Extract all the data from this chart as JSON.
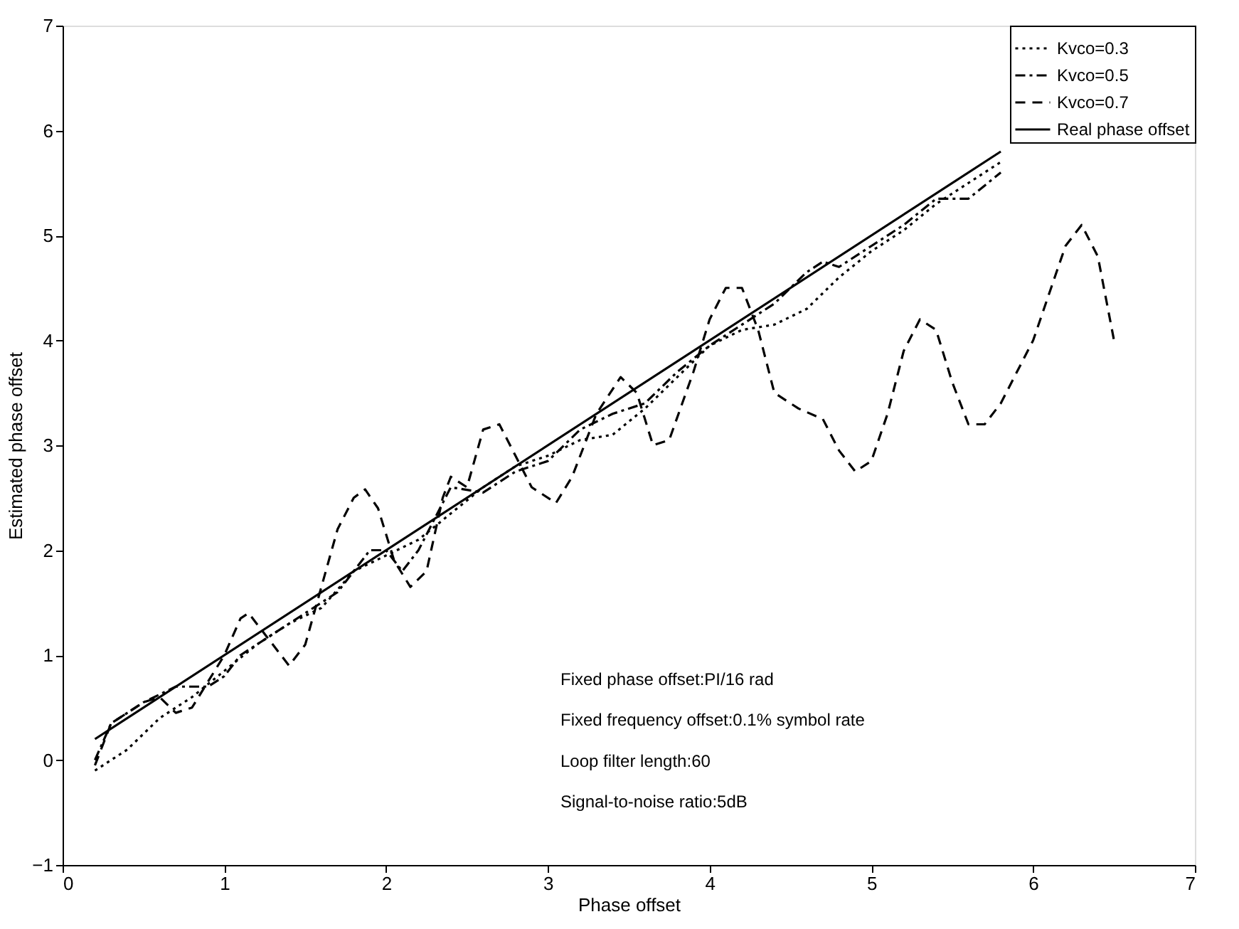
{
  "chart_data": {
    "type": "line",
    "xlabel": "Phase offset",
    "ylabel": "Estimated phase offset",
    "xlim": [
      0,
      7
    ],
    "xticks": [
      0,
      1,
      2,
      3,
      4,
      5,
      6,
      7
    ],
    "ylim": [
      -1,
      7
    ],
    "yticks": [
      -1,
      0,
      1,
      2,
      3,
      4,
      5,
      6,
      7
    ],
    "grid": false,
    "legend": "top right",
    "marker": "none",
    "series": [
      {
        "name": "Kvco=0.3",
        "color": "#000000",
        "line_style": "dotted",
        "x": [
          0.2,
          0.4,
          0.6,
          0.8,
          1.0,
          1.2,
          1.4,
          1.6,
          1.8,
          2.0,
          2.2,
          2.4,
          2.6,
          2.8,
          3.0,
          3.2,
          3.4,
          3.6,
          3.8,
          4.0,
          4.2,
          4.4,
          4.6,
          4.8,
          5.0,
          5.2,
          5.4,
          5.6,
          5.8
        ],
        "values": [
          -0.1,
          0.1,
          0.4,
          0.6,
          0.85,
          1.1,
          1.3,
          1.45,
          1.8,
          1.95,
          2.1,
          2.35,
          2.6,
          2.8,
          2.9,
          3.05,
          3.1,
          3.35,
          3.65,
          3.95,
          4.1,
          4.15,
          4.3,
          4.6,
          4.85,
          5.05,
          5.3,
          5.5,
          5.7
        ]
      },
      {
        "name": "Kvco=0.5",
        "color": "#000000",
        "line_style": "dashdot",
        "x": [
          0.2,
          0.3,
          0.5,
          0.7,
          0.9,
          1.0,
          1.1,
          1.3,
          1.5,
          1.7,
          1.9,
          2.0,
          2.1,
          2.2,
          2.4,
          2.6,
          2.8,
          3.0,
          3.2,
          3.4,
          3.6,
          3.8,
          4.0,
          4.2,
          4.4,
          4.6,
          4.7,
          4.8,
          5.0,
          5.2,
          5.4,
          5.6,
          5.8
        ],
        "values": [
          0.0,
          0.35,
          0.55,
          0.7,
          0.7,
          0.8,
          1.0,
          1.2,
          1.4,
          1.6,
          2.0,
          2.0,
          1.8,
          2.0,
          2.6,
          2.55,
          2.75,
          2.85,
          3.15,
          3.3,
          3.4,
          3.7,
          3.95,
          4.15,
          4.35,
          4.65,
          4.75,
          4.7,
          4.9,
          5.1,
          5.35,
          5.35,
          5.6
        ]
      },
      {
        "name": "Kvco=0.7",
        "color": "#000000",
        "line_style": "dashed",
        "x": [
          0.2,
          0.3,
          0.5,
          0.6,
          0.7,
          0.8,
          1.0,
          1.1,
          1.15,
          1.25,
          1.4,
          1.5,
          1.7,
          1.8,
          1.87,
          1.95,
          2.05,
          2.15,
          2.25,
          2.35,
          2.4,
          2.5,
          2.6,
          2.7,
          2.8,
          2.9,
          3.05,
          3.15,
          3.3,
          3.45,
          3.55,
          3.65,
          3.75,
          3.9,
          4.0,
          4.1,
          4.2,
          4.3,
          4.4,
          4.55,
          4.7,
          4.8,
          4.9,
          5.0,
          5.1,
          5.2,
          5.3,
          5.4,
          5.5,
          5.6,
          5.7,
          5.8,
          6.0,
          6.2,
          6.3,
          6.4,
          6.5
        ],
        "values": [
          -0.05,
          0.35,
          0.55,
          0.6,
          0.45,
          0.5,
          1.0,
          1.35,
          1.4,
          1.2,
          0.9,
          1.1,
          2.2,
          2.5,
          2.58,
          2.4,
          1.9,
          1.65,
          1.8,
          2.5,
          2.7,
          2.6,
          3.15,
          3.2,
          2.9,
          2.6,
          2.45,
          2.7,
          3.3,
          3.65,
          3.5,
          3.0,
          3.05,
          3.7,
          4.2,
          4.5,
          4.5,
          4.1,
          3.5,
          3.35,
          3.25,
          2.95,
          2.75,
          2.85,
          3.3,
          3.9,
          4.2,
          4.1,
          3.6,
          3.2,
          3.2,
          3.4,
          4.0,
          4.9,
          5.1,
          4.8,
          4.0
        ]
      },
      {
        "name": "Real phase offset",
        "color": "#000000",
        "line_style": "solid",
        "x": [
          0.2,
          5.8
        ],
        "values": [
          0.2,
          5.8
        ]
      }
    ],
    "annotations": [
      "Fixed phase offset:PI/16 rad",
      "Fixed frequency offset:0.1% symbol rate",
      "Loop filter length:60",
      "Signal-to-noise ratio:5dB"
    ]
  }
}
